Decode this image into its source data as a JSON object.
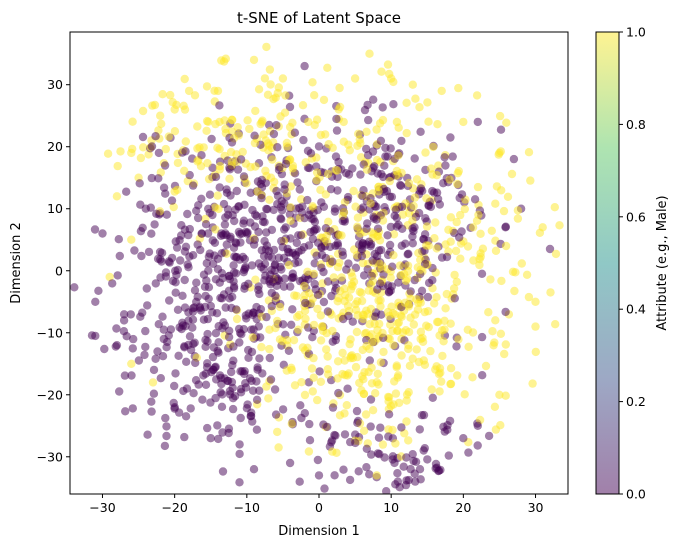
{
  "chart_data": {
    "type": "scatter",
    "title": "t-SNE of Latent Space",
    "xlabel": "Dimension 1",
    "ylabel": "Dimension 2",
    "xlim": [
      -34.5,
      34.5
    ],
    "ylim": [
      -36,
      38.5
    ],
    "xticks": [
      -30,
      -20,
      -10,
      0,
      10,
      20,
      30
    ],
    "yticks": [
      -30,
      -20,
      -10,
      0,
      10,
      20,
      30
    ],
    "grid": false,
    "point_alpha": 0.5,
    "colormap": "viridis",
    "colormap_stops": [
      "#440154",
      "#3b528b",
      "#21918c",
      "#5ec962",
      "#fde725"
    ],
    "colorbar": {
      "label": "Attribute (e.g., Male)",
      "range": [
        0.0,
        1.0
      ],
      "ticks": [
        "0.0",
        "0.2",
        "0.4",
        "0.6",
        "0.8",
        "1.0"
      ]
    },
    "clusters": [
      {
        "value": 0,
        "center": [
          -9,
          3
        ],
        "spread": [
          9,
          10
        ],
        "count": 520
      },
      {
        "value": 1,
        "center": [
          6,
          -10
        ],
        "spread": [
          8,
          9
        ],
        "count": 300
      },
      {
        "value": 1,
        "center": [
          -8,
          20
        ],
        "spread": [
          10,
          7
        ],
        "count": 200
      },
      {
        "value": 0,
        "center": [
          10,
          8
        ],
        "spread": [
          7,
          9
        ],
        "count": 220
      },
      {
        "value": 1,
        "center": [
          14,
          3
        ],
        "spread": [
          9,
          11
        ],
        "count": 230
      },
      {
        "value": 0,
        "center": [
          8,
          -28
        ],
        "spread": [
          7,
          4
        ],
        "count": 90
      },
      {
        "value": 0,
        "center": [
          -15,
          -15
        ],
        "spread": [
          7,
          7
        ],
        "count": 150
      }
    ],
    "sample_points": [
      [
        -31,
        -10.5,
        0
      ],
      [
        -30,
        6,
        0
      ],
      [
        -31,
        -5,
        0
      ],
      [
        -28,
        -12,
        0
      ],
      [
        -27,
        -8,
        0
      ],
      [
        -26,
        19,
        1
      ],
      [
        -25,
        15,
        1
      ],
      [
        -28,
        12,
        1
      ],
      [
        -22,
        25,
        1
      ],
      [
        -20,
        26,
        1
      ],
      [
        -18,
        29,
        1
      ],
      [
        -14,
        29,
        1
      ],
      [
        -9,
        34,
        1
      ],
      [
        -5,
        31,
        1
      ],
      [
        -2,
        33,
        0
      ],
      [
        5,
        31,
        1
      ],
      [
        7,
        35,
        1
      ],
      [
        10,
        31,
        1
      ],
      [
        13,
        30,
        1
      ],
      [
        17,
        29,
        1
      ],
      [
        20,
        24,
        1
      ],
      [
        22,
        24,
        0
      ],
      [
        25,
        19,
        1
      ],
      [
        27,
        18,
        0
      ],
      [
        28,
        10,
        0
      ],
      [
        31,
        7,
        1
      ],
      [
        32,
        3.5,
        0
      ],
      [
        30,
        -5,
        1
      ],
      [
        30,
        -9,
        1
      ],
      [
        25,
        -20,
        1
      ],
      [
        22,
        -25,
        0
      ],
      [
        20,
        -27,
        0
      ],
      [
        14,
        -32,
        0
      ],
      [
        8,
        -33,
        1
      ],
      [
        0,
        -33,
        0
      ],
      [
        -4,
        -31,
        0
      ],
      [
        -9,
        -32,
        0
      ],
      [
        -11,
        -28,
        0
      ],
      [
        -15,
        -27,
        0
      ],
      [
        -20,
        -22,
        0
      ],
      [
        -23,
        -18,
        1
      ],
      [
        -26,
        -15,
        1
      ],
      [
        -29,
        -1,
        1
      ],
      [
        -26,
        5,
        1
      ],
      [
        -24,
        10,
        0
      ]
    ]
  }
}
